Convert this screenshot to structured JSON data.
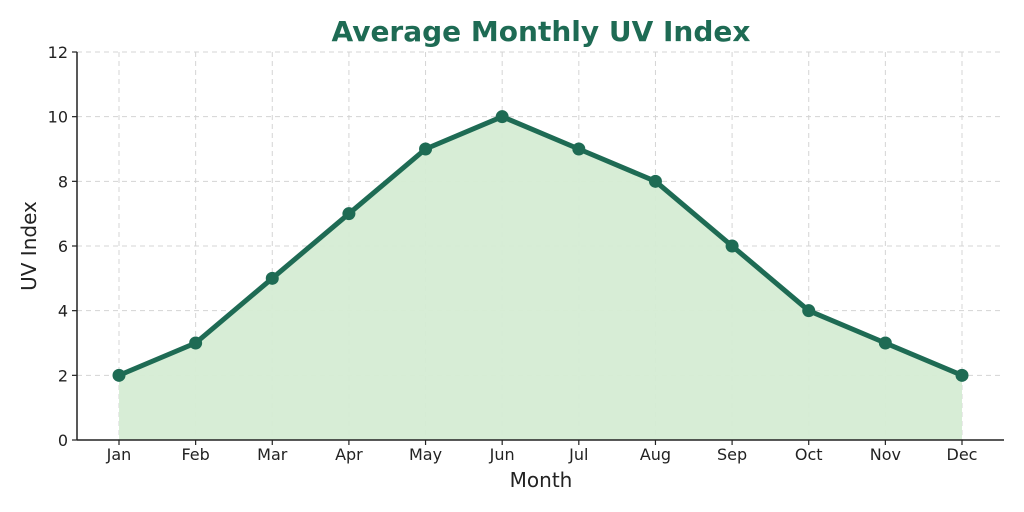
{
  "chart_data": {
    "type": "area",
    "title": "Average Monthly UV Index",
    "xlabel": "Month",
    "ylabel": "UV Index",
    "categories": [
      "Jan",
      "Feb",
      "Mar",
      "Apr",
      "May",
      "Jun",
      "Jul",
      "Aug",
      "Sep",
      "Oct",
      "Nov",
      "Dec"
    ],
    "values": [
      2,
      3,
      5,
      7,
      9,
      10,
      9,
      8,
      6,
      4,
      3,
      2
    ],
    "ylim": [
      0,
      12
    ],
    "yticks": [
      "0",
      "2",
      "4",
      "6",
      "8",
      "10",
      "12"
    ],
    "grid": true,
    "legend": "none",
    "colors": {
      "title": "#1e6b54",
      "line": "#1e6b54",
      "marker": "#1e6b54",
      "fill": "#d5ecd4"
    }
  }
}
